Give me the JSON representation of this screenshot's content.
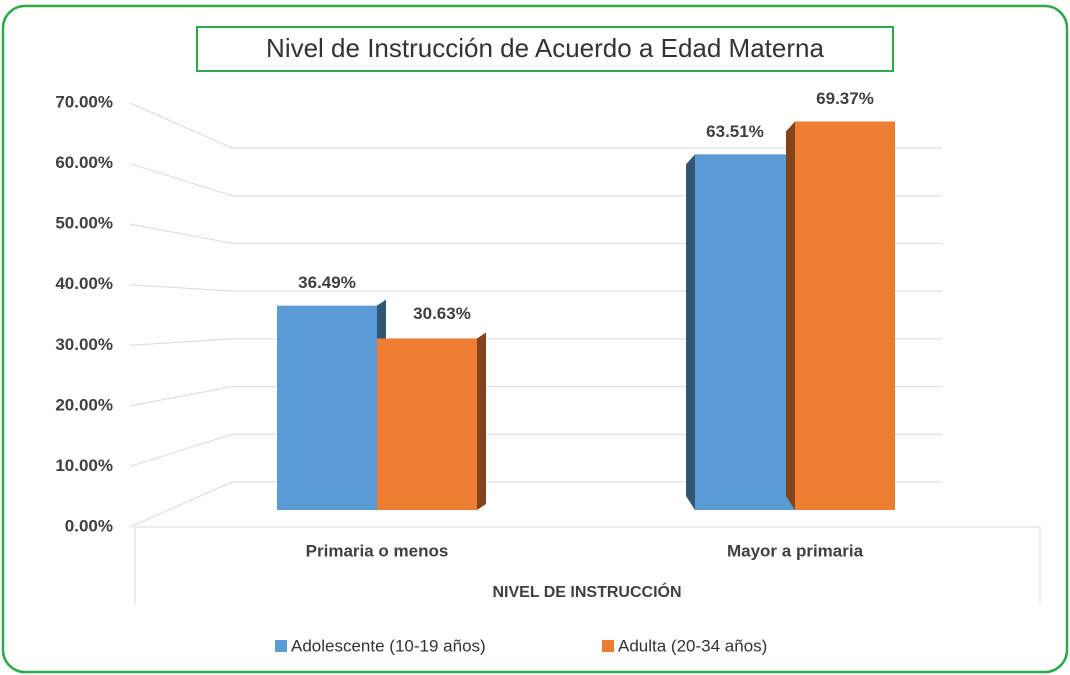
{
  "chart_data": {
    "type": "bar3d",
    "title": "Nivel de Instrucción de Acuerdo a Edad Materna",
    "x_label": "NIVEL DE INSTRUCCIÓN",
    "categories": [
      "Primaria o menos",
      "Mayor a primaria"
    ],
    "series": [
      {
        "name": "Adolescente (10-19 años)",
        "color": "#5b9bd5",
        "values": [
          36.49,
          63.51
        ],
        "value_labels": [
          "36.49%",
          "63.51%"
        ]
      },
      {
        "name": "Adulta (20-34 años)",
        "color": "#ed7d31",
        "values": [
          30.63,
          69.37
        ],
        "value_labels": [
          "30.63%",
          "69.37%"
        ]
      }
    ],
    "ylim": [
      0,
      70
    ],
    "yticks": [
      {
        "value": 0,
        "label": "0.00%"
      },
      {
        "value": 10,
        "label": "10.00%"
      },
      {
        "value": 20,
        "label": "20.00%"
      },
      {
        "value": 30,
        "label": "30.00%"
      },
      {
        "value": 40,
        "label": "40.00%"
      },
      {
        "value": 50,
        "label": "50.00%"
      },
      {
        "value": 60,
        "label": "60.00%"
      },
      {
        "value": 70,
        "label": "70.00%"
      }
    ],
    "grid": true
  }
}
